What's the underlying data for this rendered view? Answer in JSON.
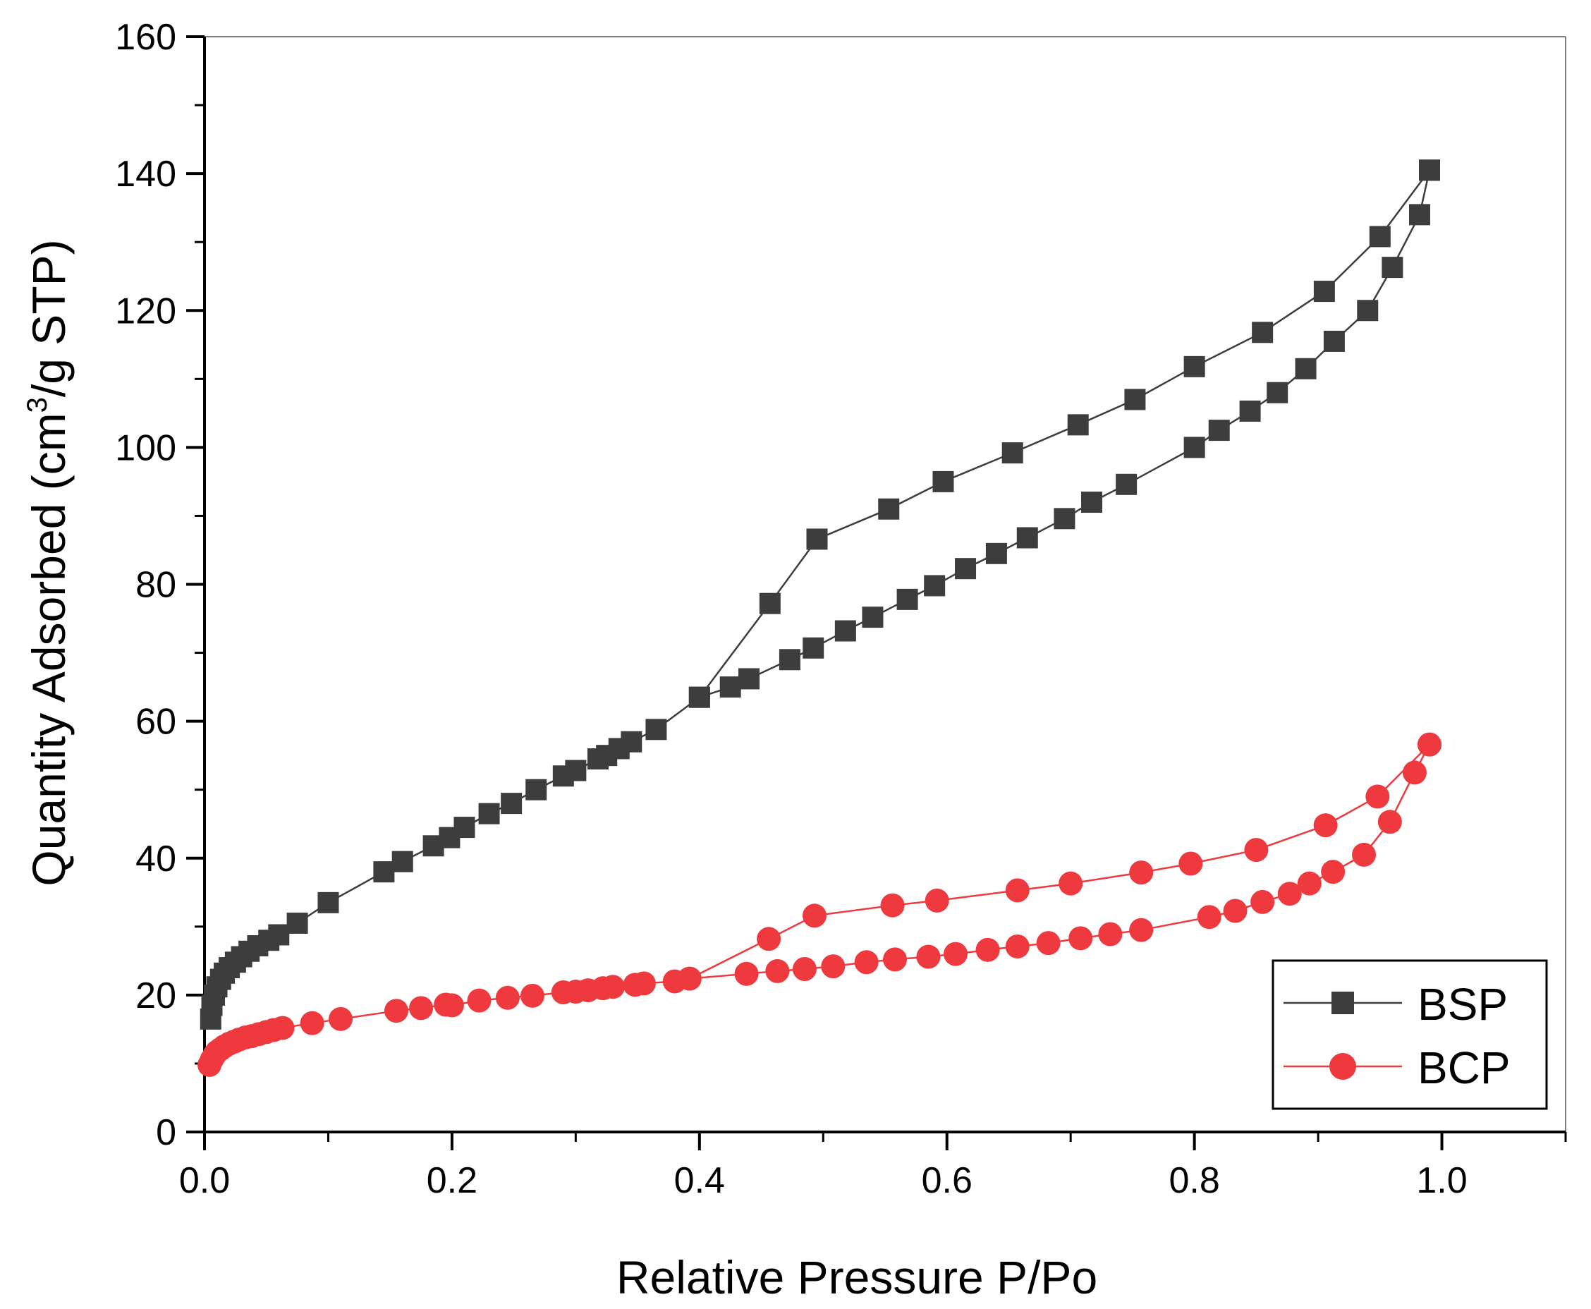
{
  "chart_data": {
    "type": "line",
    "title": "",
    "xlabel": "Relative Pressure P/Po",
    "ylabel_main": "Quantity Adsorbed (cm",
    "ylabel_sup": "3",
    "ylabel_tail": "/g STP)",
    "xlim": [
      0.0,
      1.1
    ],
    "ylim": [
      0,
      160
    ],
    "x_ticks": [
      0.0,
      0.2,
      0.4,
      0.6,
      0.8,
      1.0
    ],
    "x_tick_labels": [
      "0.0",
      "0.2",
      "0.4",
      "0.6",
      "0.8",
      "1.0"
    ],
    "y_ticks": [
      0,
      20,
      40,
      60,
      80,
      100,
      120,
      140,
      160
    ],
    "y_tick_labels": [
      "0",
      "20",
      "40",
      "60",
      "80",
      "100",
      "120",
      "140",
      "160"
    ],
    "grid": false,
    "legend_position": "bottom-right",
    "series": [
      {
        "name": "BSP",
        "color": "#3d3d3d",
        "marker": "square",
        "adsorption": {
          "x": [
            0.005,
            0.006,
            0.008,
            0.01,
            0.013,
            0.016,
            0.02,
            0.025,
            0.03,
            0.036,
            0.043,
            0.052,
            0.06,
            0.075,
            0.1,
            0.145,
            0.16,
            0.185,
            0.198,
            0.21,
            0.23,
            0.248,
            0.268,
            0.29,
            0.3,
            0.318,
            0.325,
            0.335,
            0.345,
            0.365,
            0.4,
            0.425,
            0.44,
            0.473,
            0.492,
            0.518,
            0.54,
            0.568,
            0.59,
            0.615,
            0.64,
            0.665,
            0.695,
            0.717,
            0.745,
            0.8,
            0.82,
            0.845,
            0.867,
            0.89,
            0.913,
            0.94,
            0.96,
            0.982,
            0.99
          ],
          "y": [
            16.5,
            18.5,
            20.0,
            21.2,
            22.3,
            23.2,
            24.0,
            24.8,
            25.6,
            26.4,
            27.2,
            28.0,
            28.8,
            30.5,
            33.5,
            38.0,
            39.5,
            41.8,
            43.0,
            44.5,
            46.5,
            48.0,
            50.0,
            52.0,
            52.8,
            54.5,
            55.0,
            56.0,
            57.0,
            58.8,
            63.5,
            65.0,
            66.2,
            69.0,
            70.7,
            73.2,
            75.2,
            77.8,
            79.8,
            82.3,
            84.5,
            86.8,
            89.6,
            92.0,
            94.6,
            100.0,
            102.5,
            105.3,
            108.0,
            111.5,
            115.5,
            120.0,
            126.3,
            134.0,
            140.5
          ]
        },
        "desorption": {
          "x": [
            0.99,
            0.95,
            0.905,
            0.855,
            0.8,
            0.752,
            0.706,
            0.653,
            0.597,
            0.553,
            0.495,
            0.457,
            0.4
          ],
          "y": [
            140.5,
            130.8,
            122.8,
            116.8,
            111.8,
            107.0,
            103.3,
            99.2,
            95.0,
            91.0,
            86.6,
            77.2,
            63.5
          ]
        }
      },
      {
        "name": "BCP",
        "color": "#ee3a3e",
        "marker": "circle",
        "adsorption": {
          "x": [
            0.004,
            0.006,
            0.008,
            0.01,
            0.013,
            0.016,
            0.02,
            0.024,
            0.028,
            0.033,
            0.038,
            0.044,
            0.05,
            0.056,
            0.063,
            0.087,
            0.11,
            0.155,
            0.175,
            0.195,
            0.2,
            0.222,
            0.245,
            0.265,
            0.29,
            0.3,
            0.31,
            0.322,
            0.33,
            0.348,
            0.355,
            0.38,
            0.392,
            0.438,
            0.463,
            0.485,
            0.508,
            0.535,
            0.558,
            0.585,
            0.607,
            0.633,
            0.657,
            0.682,
            0.708,
            0.732,
            0.757,
            0.812,
            0.833,
            0.855,
            0.877,
            0.893,
            0.912,
            0.937,
            0.958,
            0.978,
            0.99
          ],
          "y": [
            9.8,
            10.6,
            11.2,
            11.7,
            12.1,
            12.5,
            12.9,
            13.2,
            13.5,
            13.8,
            14.0,
            14.3,
            14.6,
            14.9,
            15.2,
            15.9,
            16.5,
            17.7,
            18.1,
            18.6,
            18.5,
            19.2,
            19.6,
            19.9,
            20.4,
            20.5,
            20.7,
            21.0,
            21.2,
            21.5,
            21.7,
            22.0,
            22.4,
            23.1,
            23.5,
            23.8,
            24.2,
            24.8,
            25.2,
            25.6,
            26.0,
            26.6,
            27.1,
            27.6,
            28.3,
            28.9,
            29.5,
            31.4,
            32.3,
            33.6,
            34.8,
            36.3,
            38.0,
            40.5,
            45.3,
            52.5,
            56.6
          ]
        },
        "desorption": {
          "x": [
            0.99,
            0.948,
            0.906,
            0.85,
            0.797,
            0.757,
            0.7,
            0.657,
            0.592,
            0.556,
            0.493,
            0.456,
            0.392
          ],
          "y": [
            56.6,
            49.0,
            44.8,
            41.2,
            39.2,
            37.9,
            36.3,
            35.3,
            33.8,
            33.1,
            31.6,
            28.2,
            22.4
          ]
        }
      }
    ]
  }
}
